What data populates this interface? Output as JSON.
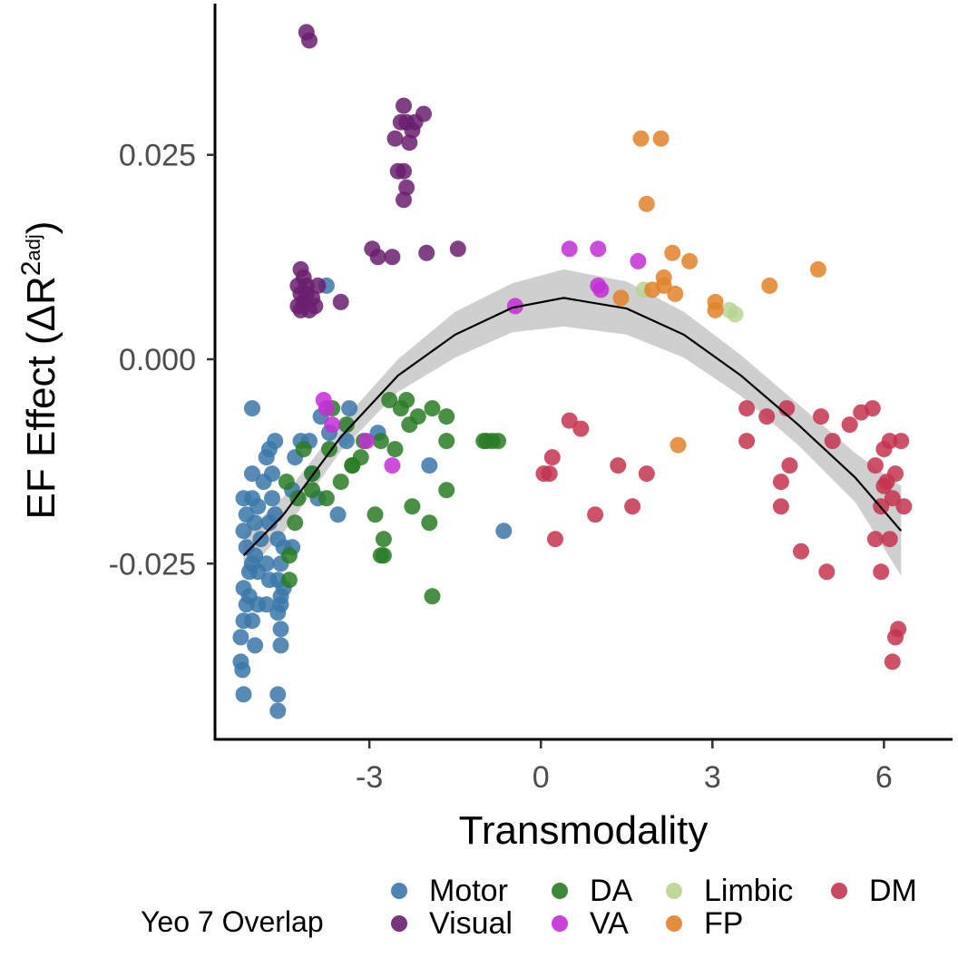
{
  "chart_data": {
    "type": "scatter",
    "title": "",
    "xlabel": "Transmodality",
    "ylabel_parts": {
      "main": "EF Effect (ΔR",
      "sup": "2",
      "sub": "adj",
      "close": ")"
    },
    "xlim": [
      -5.7,
      7.2
    ],
    "ylim": [
      -0.0465,
      0.0435
    ],
    "x_ticks": [
      {
        "value": -3,
        "label": "-3"
      },
      {
        "value": 0,
        "label": "0"
      },
      {
        "value": 3,
        "label": "3"
      },
      {
        "value": 6,
        "label": "6"
      }
    ],
    "y_ticks": [
      {
        "value": 0.025,
        "label": "0.025"
      },
      {
        "value": 0,
        "label": "0.000"
      },
      {
        "value": -0.025,
        "label": "-0.025"
      }
    ],
    "grid": false,
    "legend": {
      "title": "Yeo 7 Overlap",
      "position": "bottom",
      "items": [
        {
          "name": "Motor",
          "color": "#3a77a8"
        },
        {
          "name": "Visual",
          "color": "#6a1f6e"
        },
        {
          "name": "DA",
          "color": "#2a7b26"
        },
        {
          "name": "VA",
          "color": "#c32ed6"
        },
        {
          "name": "Limbic",
          "color": "#b9d491"
        },
        {
          "name": "FP",
          "color": "#e0822a"
        },
        {
          "name": "DM",
          "color": "#c4344f"
        }
      ]
    },
    "fit": {
      "curve": [
        {
          "x": -5.2,
          "y": -0.024
        },
        {
          "x": -4.5,
          "y": -0.019
        },
        {
          "x": -3.5,
          "y": -0.0095
        },
        {
          "x": -2.5,
          "y": -0.002
        },
        {
          "x": -1.5,
          "y": 0.003
        },
        {
          "x": -0.5,
          "y": 0.0063
        },
        {
          "x": 0.4,
          "y": 0.0075
        },
        {
          "x": 1.5,
          "y": 0.0062
        },
        {
          "x": 2.5,
          "y": 0.003
        },
        {
          "x": 3.5,
          "y": -0.002
        },
        {
          "x": 4.5,
          "y": -0.008
        },
        {
          "x": 5.5,
          "y": -0.0145
        },
        {
          "x": 6.3,
          "y": -0.021
        }
      ],
      "band_upper": [
        {
          "x": -5.2,
          "y": -0.0215
        },
        {
          "x": -4.5,
          "y": -0.0168
        },
        {
          "x": -3.5,
          "y": -0.0078
        },
        {
          "x": -2.5,
          "y": 0.0
        },
        {
          "x": -1.5,
          "y": 0.0058
        },
        {
          "x": -0.5,
          "y": 0.0093
        },
        {
          "x": 0.4,
          "y": 0.011
        },
        {
          "x": 1.5,
          "y": 0.0095
        },
        {
          "x": 2.5,
          "y": 0.0058
        },
        {
          "x": 3.5,
          "y": 0.0005
        },
        {
          "x": 4.5,
          "y": -0.0055
        },
        {
          "x": 5.5,
          "y": -0.0115
        },
        {
          "x": 6.3,
          "y": -0.0155
        }
      ],
      "band_lower": [
        {
          "x": -5.2,
          "y": -0.0265
        },
        {
          "x": -4.5,
          "y": -0.0212
        },
        {
          "x": -3.5,
          "y": -0.0112
        },
        {
          "x": -2.5,
          "y": -0.004
        },
        {
          "x": -1.5,
          "y": 0.0002
        },
        {
          "x": -0.5,
          "y": 0.0033
        },
        {
          "x": 0.4,
          "y": 0.004
        },
        {
          "x": 1.5,
          "y": 0.003
        },
        {
          "x": 2.5,
          "y": 0.0002
        },
        {
          "x": 3.5,
          "y": -0.0045
        },
        {
          "x": 4.5,
          "y": -0.0105
        },
        {
          "x": 5.5,
          "y": -0.0175
        },
        {
          "x": 6.3,
          "y": -0.0265
        }
      ]
    },
    "series": [
      {
        "name": "Motor",
        "color": "#3a77a8",
        "points": [
          [
            -5.2,
            -0.041
          ],
          [
            -5.25,
            -0.037
          ],
          [
            -5.22,
            -0.038
          ],
          [
            -5.25,
            -0.034
          ],
          [
            -5.2,
            -0.032
          ],
          [
            -5.15,
            -0.03
          ],
          [
            -5.2,
            -0.028
          ],
          [
            -5.1,
            -0.026
          ],
          [
            -5.15,
            -0.023
          ],
          [
            -5.2,
            -0.021
          ],
          [
            -5.15,
            -0.019
          ],
          [
            -5.2,
            -0.017
          ],
          [
            -5.05,
            -0.017
          ],
          [
            -5.05,
            -0.014
          ],
          [
            -5.0,
            -0.02
          ],
          [
            -5.05,
            -0.025
          ],
          [
            -5.1,
            -0.029
          ],
          [
            -5.05,
            -0.032
          ],
          [
            -5.0,
            -0.035
          ],
          [
            -4.95,
            -0.03
          ],
          [
            -4.95,
            -0.026
          ],
          [
            -4.9,
            -0.022
          ],
          [
            -4.95,
            -0.018
          ],
          [
            -5.0,
            -0.024
          ],
          [
            -4.85,
            -0.015
          ],
          [
            -4.8,
            -0.012
          ],
          [
            -4.75,
            -0.011
          ],
          [
            -4.7,
            -0.014
          ],
          [
            -4.7,
            -0.017
          ],
          [
            -4.75,
            -0.02
          ],
          [
            -4.8,
            -0.025
          ],
          [
            -4.8,
            -0.03
          ],
          [
            -4.75,
            -0.027
          ],
          [
            -4.6,
            -0.043
          ],
          [
            -4.6,
            -0.041
          ],
          [
            -4.55,
            -0.035
          ],
          [
            -4.55,
            -0.033
          ],
          [
            -4.6,
            -0.031
          ],
          [
            -4.55,
            -0.029
          ],
          [
            -4.6,
            -0.027
          ],
          [
            -4.55,
            -0.025
          ],
          [
            -4.6,
            -0.022
          ],
          [
            -4.5,
            -0.023
          ],
          [
            -4.55,
            -0.03
          ],
          [
            -4.5,
            -0.028
          ],
          [
            -4.65,
            -0.01
          ],
          [
            -4.65,
            -0.019
          ],
          [
            -4.35,
            -0.023
          ],
          [
            -4.35,
            -0.016
          ],
          [
            -4.3,
            -0.012
          ],
          [
            -4.2,
            -0.01
          ],
          [
            -4.05,
            -0.01
          ],
          [
            -4.0,
            -0.014
          ],
          [
            -3.9,
            -0.017
          ],
          [
            -3.85,
            -0.007
          ],
          [
            -3.7,
            -0.009
          ],
          [
            -3.55,
            -0.019
          ],
          [
            -3.35,
            -0.006
          ],
          [
            -2.85,
            -0.009
          ],
          [
            -1.95,
            -0.013
          ],
          [
            -0.65,
            -0.021
          ],
          [
            -5.05,
            -0.006
          ],
          [
            -3.75,
            0.009
          ],
          [
            -3.4,
            -0.01
          ]
        ]
      },
      {
        "name": "Visual",
        "color": "#6a1f6e",
        "points": [
          [
            -4.1,
            0.04
          ],
          [
            -4.05,
            0.039
          ],
          [
            -4.2,
            0.011
          ],
          [
            -4.15,
            0.01
          ],
          [
            -4.1,
            0.009
          ],
          [
            -4.2,
            0.008
          ],
          [
            -4.15,
            0.007
          ],
          [
            -4.05,
            0.006
          ],
          [
            -4.0,
            0.0075
          ],
          [
            -3.95,
            0.0065
          ],
          [
            -4.25,
            0.0065
          ],
          [
            -4.2,
            0.006
          ],
          [
            -4.1,
            0.008
          ],
          [
            -3.9,
            0.009
          ],
          [
            -4.25,
            0.009
          ],
          [
            -3.5,
            0.007
          ],
          [
            -2.95,
            0.0135
          ],
          [
            -2.85,
            0.0125
          ],
          [
            -2.6,
            0.0125
          ],
          [
            -2.0,
            0.013
          ],
          [
            -1.45,
            0.0135
          ],
          [
            -2.55,
            0.027
          ],
          [
            -2.45,
            0.029
          ],
          [
            -2.4,
            0.031
          ],
          [
            -2.35,
            0.029
          ],
          [
            -2.25,
            0.028
          ],
          [
            -2.2,
            0.029
          ],
          [
            -2.05,
            0.03
          ],
          [
            -2.3,
            0.0265
          ],
          [
            -2.4,
            0.023
          ],
          [
            -2.35,
            0.021
          ],
          [
            -2.4,
            0.0195
          ],
          [
            -2.5,
            0.023
          ]
        ]
      },
      {
        "name": "DA",
        "color": "#2a7b26",
        "points": [
          [
            -4.15,
            -0.011
          ],
          [
            -4.0,
            -0.014
          ],
          [
            -4.0,
            -0.016
          ],
          [
            -3.7,
            -0.011
          ],
          [
            -3.75,
            -0.017
          ],
          [
            -3.5,
            -0.015
          ],
          [
            -3.3,
            -0.013
          ],
          [
            -3.65,
            -0.006
          ],
          [
            -3.4,
            -0.008
          ],
          [
            -3.1,
            -0.01
          ],
          [
            -2.9,
            -0.019
          ],
          [
            -2.75,
            -0.022
          ],
          [
            -2.8,
            -0.024
          ],
          [
            -2.75,
            -0.024
          ],
          [
            -2.8,
            -0.01
          ],
          [
            -2.65,
            -0.005
          ],
          [
            -2.55,
            -0.011
          ],
          [
            -2.45,
            -0.006
          ],
          [
            -2.35,
            -0.005
          ],
          [
            -2.3,
            -0.008
          ],
          [
            -2.15,
            -0.007
          ],
          [
            -2.25,
            -0.018
          ],
          [
            -1.9,
            -0.006
          ],
          [
            -1.95,
            -0.02
          ],
          [
            -1.9,
            -0.029
          ],
          [
            -1.65,
            -0.016
          ],
          [
            -1.65,
            -0.01
          ],
          [
            -1.65,
            -0.007
          ],
          [
            -1.0,
            -0.01
          ],
          [
            -0.95,
            -0.01
          ],
          [
            -0.85,
            -0.01
          ],
          [
            -0.75,
            -0.01
          ],
          [
            -4.4,
            -0.024
          ],
          [
            -4.4,
            -0.027
          ],
          [
            -4.3,
            -0.02
          ],
          [
            -4.25,
            -0.017
          ],
          [
            -4.45,
            -0.015
          ],
          [
            -3.15,
            -0.012
          ],
          [
            -3.3,
            -0.013
          ]
        ]
      },
      {
        "name": "VA",
        "color": "#c32ed6",
        "points": [
          [
            -3.8,
            -0.005
          ],
          [
            -3.75,
            -0.006
          ],
          [
            -3.65,
            -0.008
          ],
          [
            -3.05,
            -0.01
          ],
          [
            -2.6,
            -0.013
          ],
          [
            -0.45,
            0.0065
          ],
          [
            0.5,
            0.0135
          ],
          [
            1.0,
            0.0135
          ],
          [
            1.0,
            0.009
          ],
          [
            1.7,
            0.012
          ],
          [
            1.05,
            0.0085
          ]
        ]
      },
      {
        "name": "Limbic",
        "color": "#b9d491",
        "points": [
          [
            1.8,
            0.0085
          ],
          [
            3.3,
            0.006
          ],
          [
            3.4,
            0.0055
          ]
        ]
      },
      {
        "name": "FP",
        "color": "#e0822a",
        "points": [
          [
            1.75,
            0.027
          ],
          [
            2.1,
            0.027
          ],
          [
            1.85,
            0.019
          ],
          [
            2.3,
            0.013
          ],
          [
            2.6,
            0.012
          ],
          [
            2.15,
            0.01
          ],
          [
            2.15,
            0.009
          ],
          [
            2.35,
            0.008
          ],
          [
            1.95,
            0.0085
          ],
          [
            1.4,
            0.0075
          ],
          [
            3.05,
            0.007
          ],
          [
            3.05,
            0.006
          ],
          [
            4.0,
            0.009
          ],
          [
            4.85,
            0.011
          ],
          [
            2.4,
            -0.0105
          ]
        ]
      },
      {
        "name": "DM",
        "color": "#c4344f",
        "points": [
          [
            0.05,
            -0.014
          ],
          [
            0.15,
            -0.014
          ],
          [
            0.2,
            -0.012
          ],
          [
            0.25,
            -0.022
          ],
          [
            0.5,
            -0.0075
          ],
          [
            0.7,
            -0.0085
          ],
          [
            0.95,
            -0.019
          ],
          [
            1.35,
            -0.013
          ],
          [
            1.6,
            -0.018
          ],
          [
            1.85,
            -0.014
          ],
          [
            3.6,
            -0.006
          ],
          [
            3.6,
            -0.01
          ],
          [
            3.95,
            -0.007
          ],
          [
            4.2,
            -0.015
          ],
          [
            4.2,
            -0.018
          ],
          [
            4.35,
            -0.013
          ],
          [
            4.3,
            -0.006
          ],
          [
            4.55,
            -0.0235
          ],
          [
            4.9,
            -0.007
          ],
          [
            5.0,
            -0.026
          ],
          [
            5.1,
            -0.01
          ],
          [
            5.4,
            -0.008
          ],
          [
            5.6,
            -0.0065
          ],
          [
            5.8,
            -0.006
          ],
          [
            5.85,
            -0.013
          ],
          [
            5.85,
            -0.022
          ],
          [
            5.95,
            -0.026
          ],
          [
            5.95,
            -0.018
          ],
          [
            6.0,
            -0.011
          ],
          [
            6.05,
            -0.015
          ],
          [
            6.1,
            -0.01
          ],
          [
            6.1,
            -0.022
          ],
          [
            6.15,
            -0.017
          ],
          [
            6.2,
            -0.014
          ],
          [
            6.2,
            -0.034
          ],
          [
            6.25,
            -0.033
          ],
          [
            6.3,
            -0.01
          ],
          [
            6.35,
            -0.018
          ],
          [
            6.0,
            -0.0155
          ],
          [
            6.15,
            -0.037
          ]
        ]
      }
    ]
  }
}
